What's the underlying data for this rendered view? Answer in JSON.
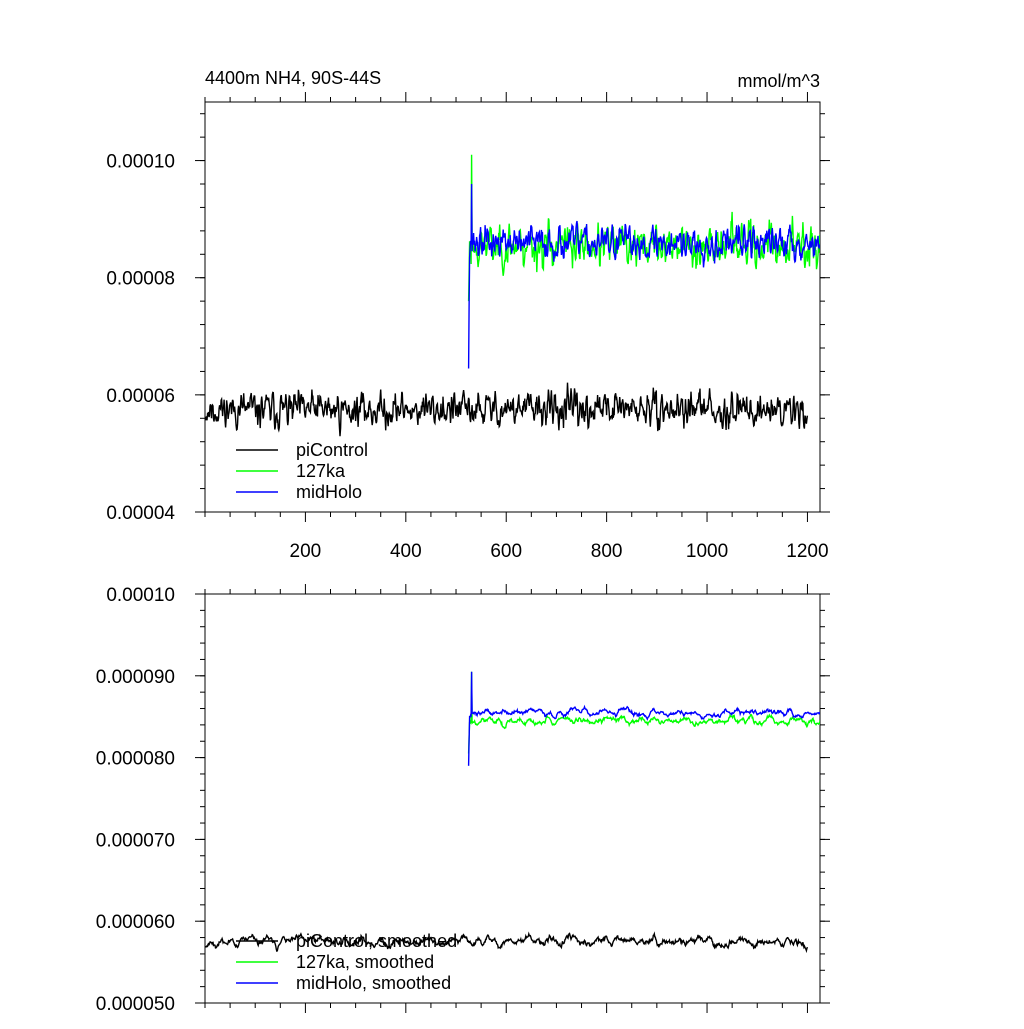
{
  "chart_data": [
    {
      "type": "line",
      "title_left": "4400m NH4, 90S-44S",
      "title_right": "mmol/m^3",
      "xlim": [
        0,
        1225
      ],
      "ylim": [
        4e-05,
        0.00011
      ],
      "xticks": [
        200,
        400,
        600,
        800,
        1000,
        1200
      ],
      "yticks": [
        4e-05,
        6e-05,
        8e-05,
        0.0001
      ],
      "ytick_labels": [
        "0.00004",
        "0.00006",
        "0.00008",
        "0.00010"
      ],
      "legend": {
        "placement": "lower-left",
        "entries": [
          "piControl",
          "127ka",
          "midHolo"
        ]
      },
      "grid": false,
      "series": [
        {
          "name": "piControl",
          "color": "#000000",
          "x_start": 1,
          "x_end": 1200,
          "mean": 5.75e-05,
          "amp": 3.8e-06,
          "seed": 11,
          "smooth": 1
        },
        {
          "name": "127ka",
          "color": "#00ff00",
          "x_start": 525,
          "x_end": 1225,
          "mean": 8.55e-05,
          "amp": 4.6e-06,
          "seed": 23,
          "smooth": 1,
          "start_value": 7.6e-05,
          "peak_value": 0.000101
        },
        {
          "name": "midHolo",
          "color": "#0000ff",
          "x_start": 525,
          "x_end": 1225,
          "mean": 8.6e-05,
          "amp": 3.6e-06,
          "seed": 37,
          "smooth": 1,
          "start_value": 6.45e-05,
          "peak_value": 9.6e-05
        }
      ]
    },
    {
      "type": "line",
      "xlim": [
        0,
        1225
      ],
      "ylim": [
        5e-05,
        0.0001
      ],
      "xticks": [
        200,
        400,
        600,
        800,
        1000,
        1200
      ],
      "yticks": [
        5e-05,
        6e-05,
        7e-05,
        8e-05,
        9e-05,
        0.0001
      ],
      "ytick_labels": [
        "0.000050",
        "0.000060",
        "0.000070",
        "0.000080",
        "0.000090",
        "0.00010"
      ],
      "legend": {
        "placement": "lower-left",
        "entries": [
          "piControl, smoothed",
          "127ka, smoothed",
          "midHolo, smoothed"
        ]
      },
      "grid": false,
      "series": [
        {
          "name": "piControl, smoothed",
          "color": "#000000",
          "x_start": 1,
          "x_end": 1200,
          "mean": 5.75e-05,
          "amp": 1.8e-06,
          "seed": 11,
          "smooth": 5
        },
        {
          "name": "127ka, smoothed",
          "color": "#00ff00",
          "x_start": 525,
          "x_end": 1225,
          "mean": 8.45e-05,
          "amp": 1.4e-06,
          "seed": 23,
          "smooth": 5,
          "start_value": 8.05e-05,
          "peak_value": 9.05e-05
        },
        {
          "name": "midHolo, smoothed",
          "color": "#0000ff",
          "x_start": 525,
          "x_end": 1225,
          "mean": 8.55e-05,
          "amp": 1.3e-06,
          "seed": 37,
          "smooth": 5,
          "start_value": 7.9e-05,
          "peak_value": 9.05e-05
        }
      ]
    }
  ]
}
